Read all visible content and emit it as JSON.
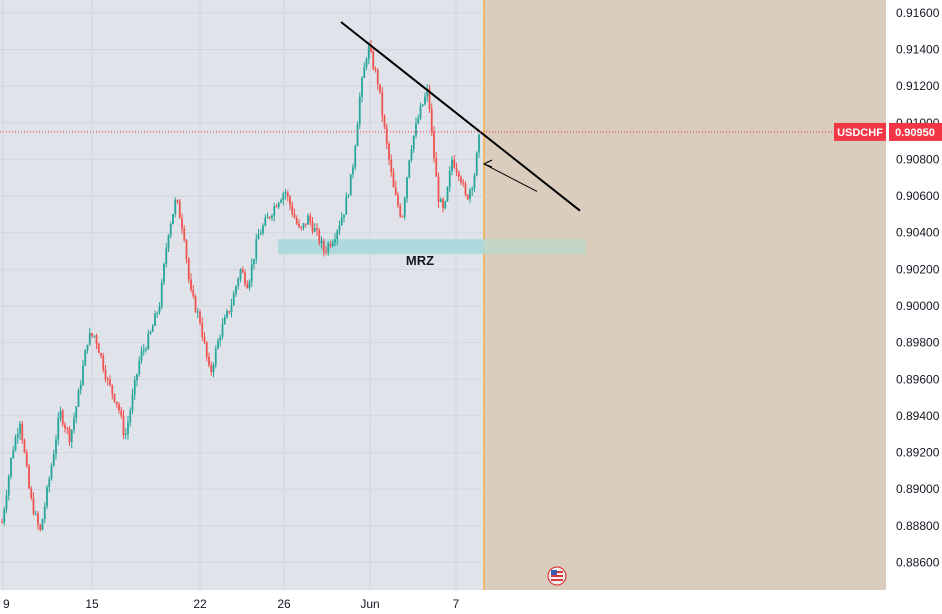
{
  "chart_data": {
    "type": "candlestick",
    "symbol": "USDCHF",
    "last_price": "0.90950",
    "y_ticks": [
      "0.91600",
      "0.91400",
      "0.91200",
      "0.91000",
      "0.90800",
      "0.90600",
      "0.90400",
      "0.90200",
      "0.90000",
      "0.89800",
      "0.89600",
      "0.89400",
      "0.89200",
      "0.89000",
      "0.88800",
      "0.88600"
    ],
    "x_ticks": [
      "9",
      "15",
      "22",
      "26",
      "Jun",
      "7"
    ],
    "zone_label": "MRZ",
    "ylim": [
      0.8845,
      0.9167
    ],
    "zone": {
      "from": 0.90283,
      "to": 0.90365
    },
    "trendline": {
      "from": 0.9155,
      "to": 0.9052
    },
    "last_price_value": 0.9095,
    "colors": {
      "up": "#26a69a",
      "down": "#ef5350",
      "background": "#e1e3ea",
      "forecast_area": "#dacdbd",
      "zone": "#a9d8dd",
      "price_line": "#f23645",
      "vline": "#f5a623"
    },
    "grid": true,
    "legend": "none"
  },
  "icons": {
    "event_flag": "us-flag-icon"
  }
}
